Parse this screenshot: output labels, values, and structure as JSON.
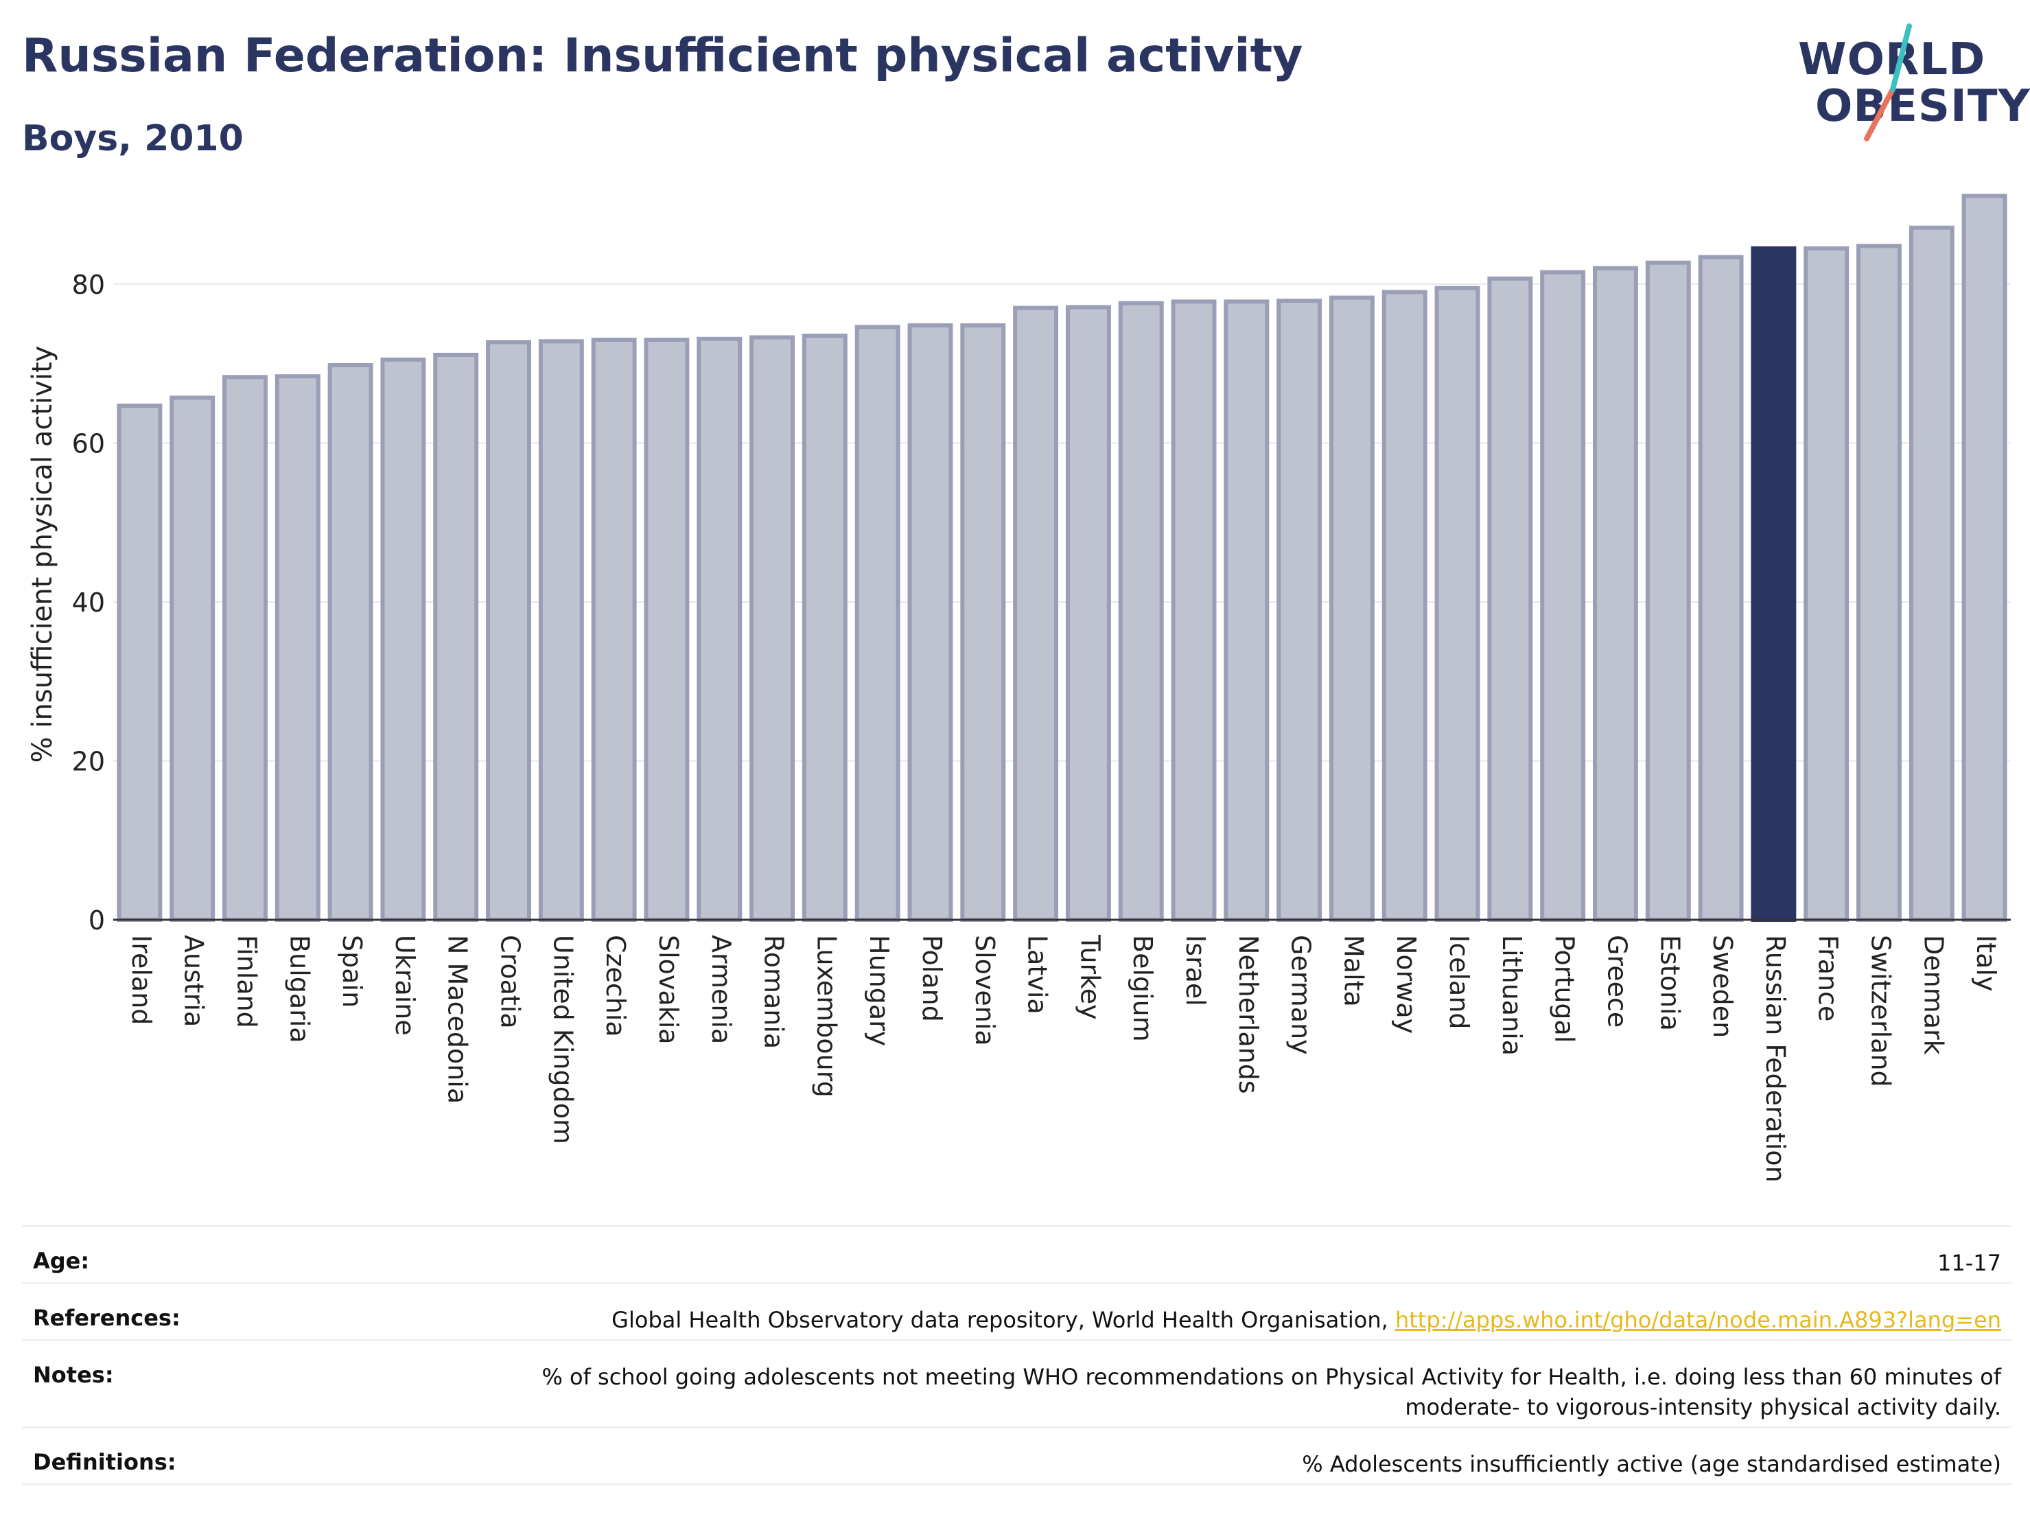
{
  "header": {
    "title": "Russian Federation: Insufficient physical activity",
    "subtitle": "Boys, 2010"
  },
  "logo": {
    "line1": "WORLD",
    "line2": "OBESITY",
    "colors": {
      "text": "#2b3561",
      "slash_top": "#3cbfc0",
      "slash_bottom": "#e8735f"
    }
  },
  "chart_data": {
    "type": "bar",
    "ylabel": "% insufficient physical activity",
    "ylim": [
      0,
      92
    ],
    "yticks": [
      0,
      20,
      40,
      60,
      80
    ],
    "grid": true,
    "highlight": "Russian Federation",
    "colors": {
      "bar": "#bfc2cf",
      "bar_stroke": "#9a9eb6",
      "highlight": "#2b3561"
    },
    "categories": [
      "Ireland",
      "Austria",
      "Finland",
      "Bulgaria",
      "Spain",
      "Ukraine",
      "N Macedonia",
      "Croatia",
      "United Kingdom",
      "Czechia",
      "Slovakia",
      "Armenia",
      "Romania",
      "Luxembourg",
      "Hungary",
      "Poland",
      "Slovenia",
      "Latvia",
      "Turkey",
      "Belgium",
      "Israel",
      "Netherlands",
      "Germany",
      "Malta",
      "Norway",
      "Iceland",
      "Lithuania",
      "Portugal",
      "Greece",
      "Estonia",
      "Sweden",
      "Russian Federation",
      "France",
      "Switzerland",
      "Denmark",
      "Italy"
    ],
    "values": [
      64.7,
      65.7,
      68.3,
      68.4,
      69.8,
      70.5,
      71.1,
      72.7,
      72.8,
      73.0,
      73.0,
      73.1,
      73.3,
      73.5,
      74.6,
      74.8,
      74.8,
      77.0,
      77.1,
      77.6,
      77.8,
      77.8,
      77.9,
      78.3,
      79.0,
      79.5,
      80.7,
      81.5,
      82.0,
      82.7,
      83.4,
      84.5,
      84.5,
      84.8,
      87.1,
      91.1
    ]
  },
  "info": {
    "age_label": "Age:",
    "age_value": "11-17",
    "references_label": "References:",
    "references_text": "Global Health Observatory data repository, World Health Organisation, ",
    "references_link": "http://apps.who.int/gho/data/node.main.A893?lang=en",
    "notes_label": "Notes:",
    "notes_line1": "% of school going adolescents not meeting WHO recommendations on Physical Activity for Health, i.e. doing less than 60 minutes of",
    "notes_line2": "moderate- to vigorous-intensity physical activity daily.",
    "definitions_label": "Definitions:",
    "definitions_value": "% Adolescents insufficiently active (age standardised estimate)"
  }
}
